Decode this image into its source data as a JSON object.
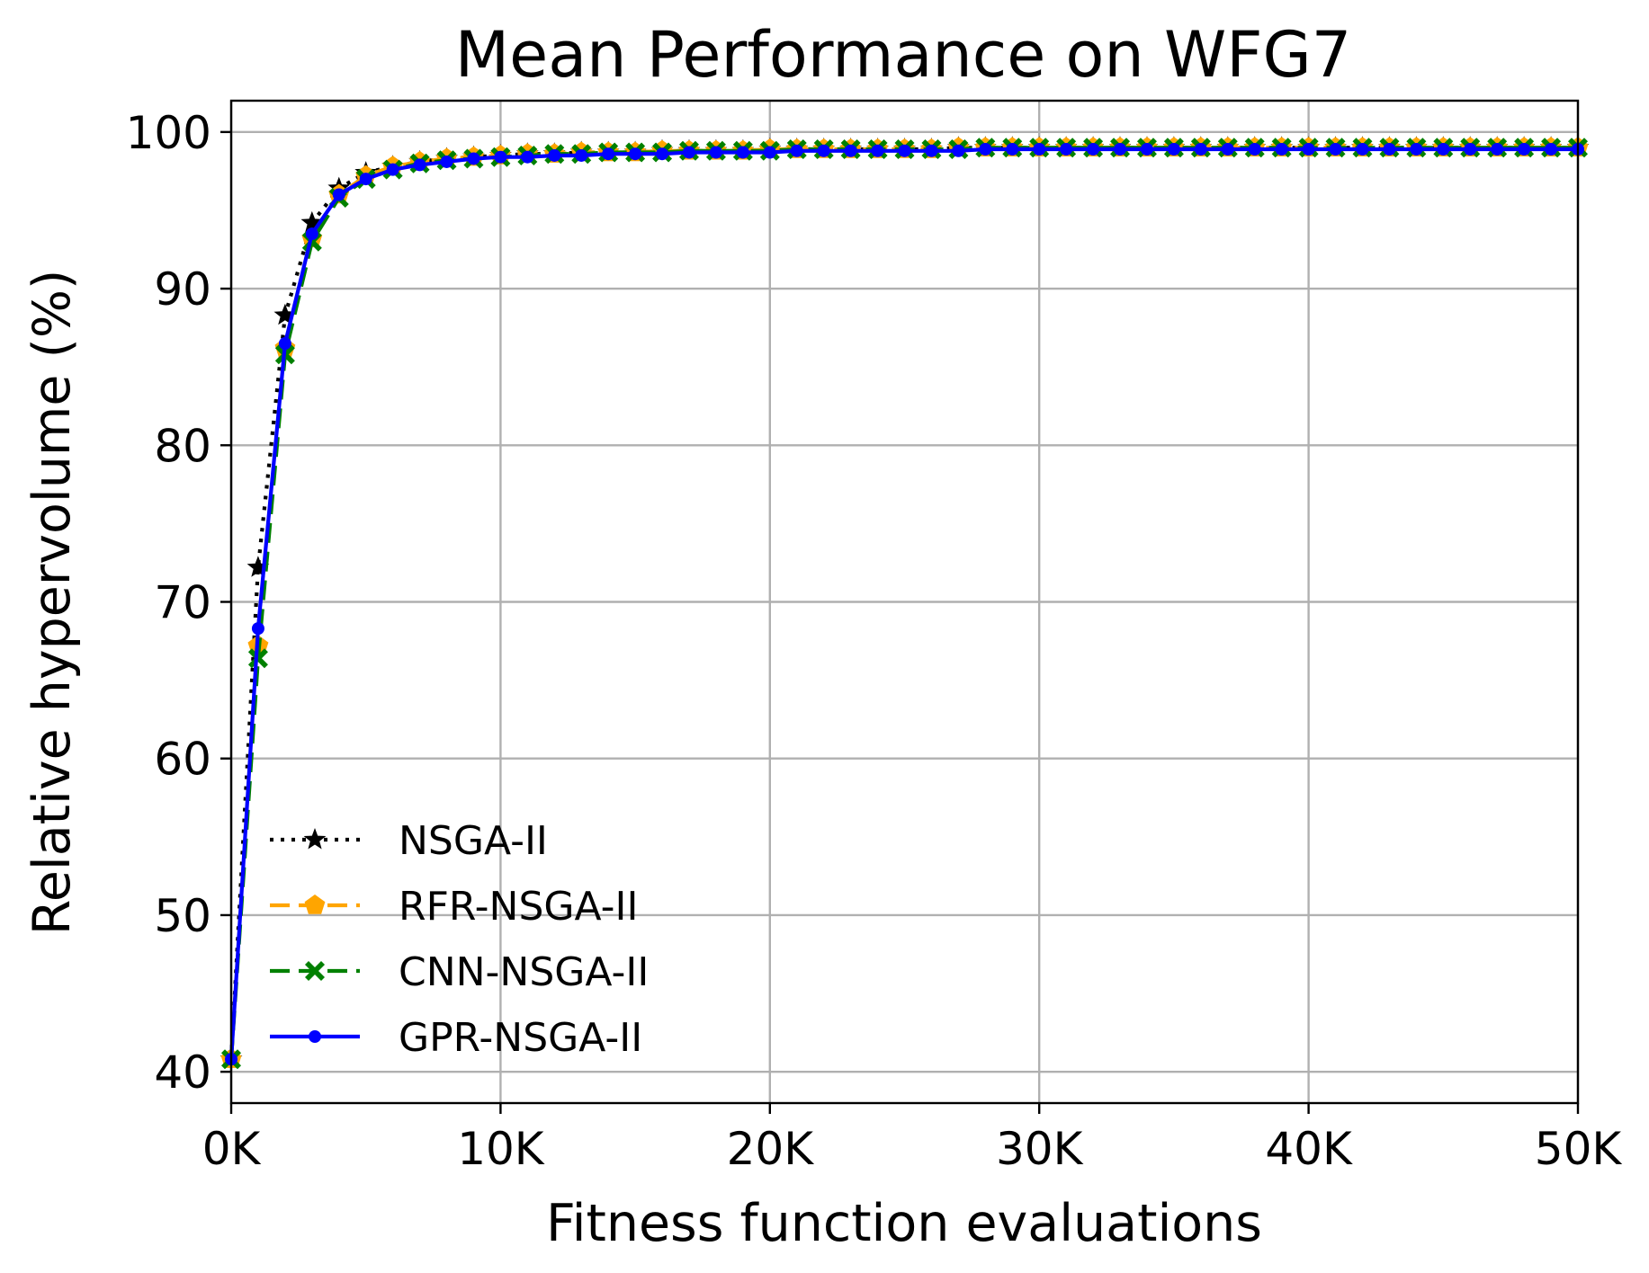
{
  "chart_data": {
    "type": "line",
    "title": "Mean Performance on WFG7",
    "xlabel": "Fitness function evaluations",
    "ylabel": "Relative hypervolume (%)",
    "xlim": [
      0,
      50000
    ],
    "ylim": [
      38,
      102
    ],
    "x_ticks": [
      {
        "value": 0,
        "label": "0K"
      },
      {
        "value": 10000,
        "label": "10K"
      },
      {
        "value": 20000,
        "label": "20K"
      },
      {
        "value": 30000,
        "label": "30K"
      },
      {
        "value": 40000,
        "label": "40K"
      },
      {
        "value": 50000,
        "label": "50K"
      }
    ],
    "y_ticks": [
      {
        "value": 40,
        "label": "40"
      },
      {
        "value": 50,
        "label": "50"
      },
      {
        "value": 60,
        "label": "60"
      },
      {
        "value": 70,
        "label": "70"
      },
      {
        "value": 80,
        "label": "80"
      },
      {
        "value": 90,
        "label": "90"
      },
      {
        "value": 100,
        "label": "100"
      }
    ],
    "grid": true,
    "legend_position": "lower-left",
    "x": [
      0,
      1000,
      2000,
      3000,
      4000,
      5000,
      6000,
      7000,
      8000,
      9000,
      10000,
      11000,
      12000,
      13000,
      14000,
      15000,
      16000,
      17000,
      18000,
      19000,
      20000,
      21000,
      22000,
      23000,
      24000,
      25000,
      26000,
      27000,
      28000,
      29000,
      30000,
      31000,
      32000,
      33000,
      34000,
      35000,
      36000,
      37000,
      38000,
      39000,
      40000,
      41000,
      42000,
      43000,
      44000,
      45000,
      46000,
      47000,
      48000,
      49000,
      50000
    ],
    "series": [
      {
        "name": "NSGA-II",
        "color": "#000000",
        "line_style": "dotted",
        "marker": "star",
        "values": [
          40.8,
          72.2,
          88.3,
          94.2,
          96.4,
          97.4,
          97.8,
          98.1,
          98.3,
          98.4,
          98.5,
          98.6,
          98.6,
          98.7,
          98.7,
          98.7,
          98.8,
          98.8,
          98.8,
          98.8,
          98.9,
          98.9,
          98.9,
          98.9,
          98.9,
          98.9,
          98.9,
          99.0,
          99.0,
          99.0,
          99.0,
          99.0,
          99.0,
          99.0,
          99.0,
          99.0,
          99.0,
          99.0,
          99.0,
          99.0,
          99.0,
          99.0,
          99.0,
          99.0,
          99.0,
          99.0,
          99.0,
          99.0,
          99.0,
          99.0,
          99.0
        ]
      },
      {
        "name": "RFR-NSGA-II",
        "color": "#ffa500",
        "line_style": "dashed",
        "marker": "pentagon",
        "values": [
          40.8,
          67.2,
          86.2,
          93.2,
          96.0,
          97.2,
          97.8,
          98.1,
          98.3,
          98.4,
          98.5,
          98.6,
          98.6,
          98.7,
          98.7,
          98.7,
          98.8,
          98.8,
          98.8,
          98.8,
          98.9,
          98.9,
          98.9,
          98.9,
          98.9,
          98.9,
          98.9,
          99.0,
          99.0,
          99.0,
          99.0,
          99.0,
          99.0,
          99.0,
          99.0,
          99.0,
          99.0,
          99.0,
          99.0,
          99.0,
          99.0,
          99.0,
          99.0,
          99.0,
          99.0,
          99.0,
          99.0,
          99.0,
          99.0,
          99.0,
          99.0
        ]
      },
      {
        "name": "CNN-NSGA-II",
        "color": "#008000",
        "line_style": "dashed",
        "marker": "x-filled",
        "values": [
          40.8,
          66.4,
          85.8,
          93.0,
          95.8,
          97.0,
          97.6,
          98.0,
          98.2,
          98.3,
          98.4,
          98.5,
          98.6,
          98.6,
          98.7,
          98.7,
          98.7,
          98.8,
          98.8,
          98.8,
          98.8,
          98.9,
          98.9,
          98.9,
          98.9,
          98.9,
          98.9,
          98.9,
          99.0,
          99.0,
          99.0,
          99.0,
          99.0,
          99.0,
          99.0,
          99.0,
          99.0,
          99.0,
          99.0,
          99.0,
          99.0,
          99.0,
          99.0,
          99.0,
          99.0,
          99.0,
          99.0,
          99.0,
          99.0,
          99.0,
          99.0
        ]
      },
      {
        "name": "GPR-NSGA-II",
        "color": "#0000ff",
        "line_style": "solid",
        "marker": "circle",
        "values": [
          40.8,
          68.3,
          86.5,
          93.5,
          96.0,
          97.0,
          97.6,
          97.9,
          98.1,
          98.3,
          98.4,
          98.4,
          98.5,
          98.5,
          98.6,
          98.6,
          98.6,
          98.7,
          98.7,
          98.7,
          98.7,
          98.8,
          98.8,
          98.8,
          98.8,
          98.8,
          98.8,
          98.8,
          98.9,
          98.9,
          98.9,
          98.9,
          98.9,
          98.9,
          98.9,
          98.9,
          98.9,
          98.9,
          98.9,
          98.9,
          98.9,
          98.9,
          98.9,
          98.9,
          98.9,
          98.9,
          98.9,
          98.9,
          98.9,
          98.9,
          98.9
        ]
      }
    ]
  }
}
